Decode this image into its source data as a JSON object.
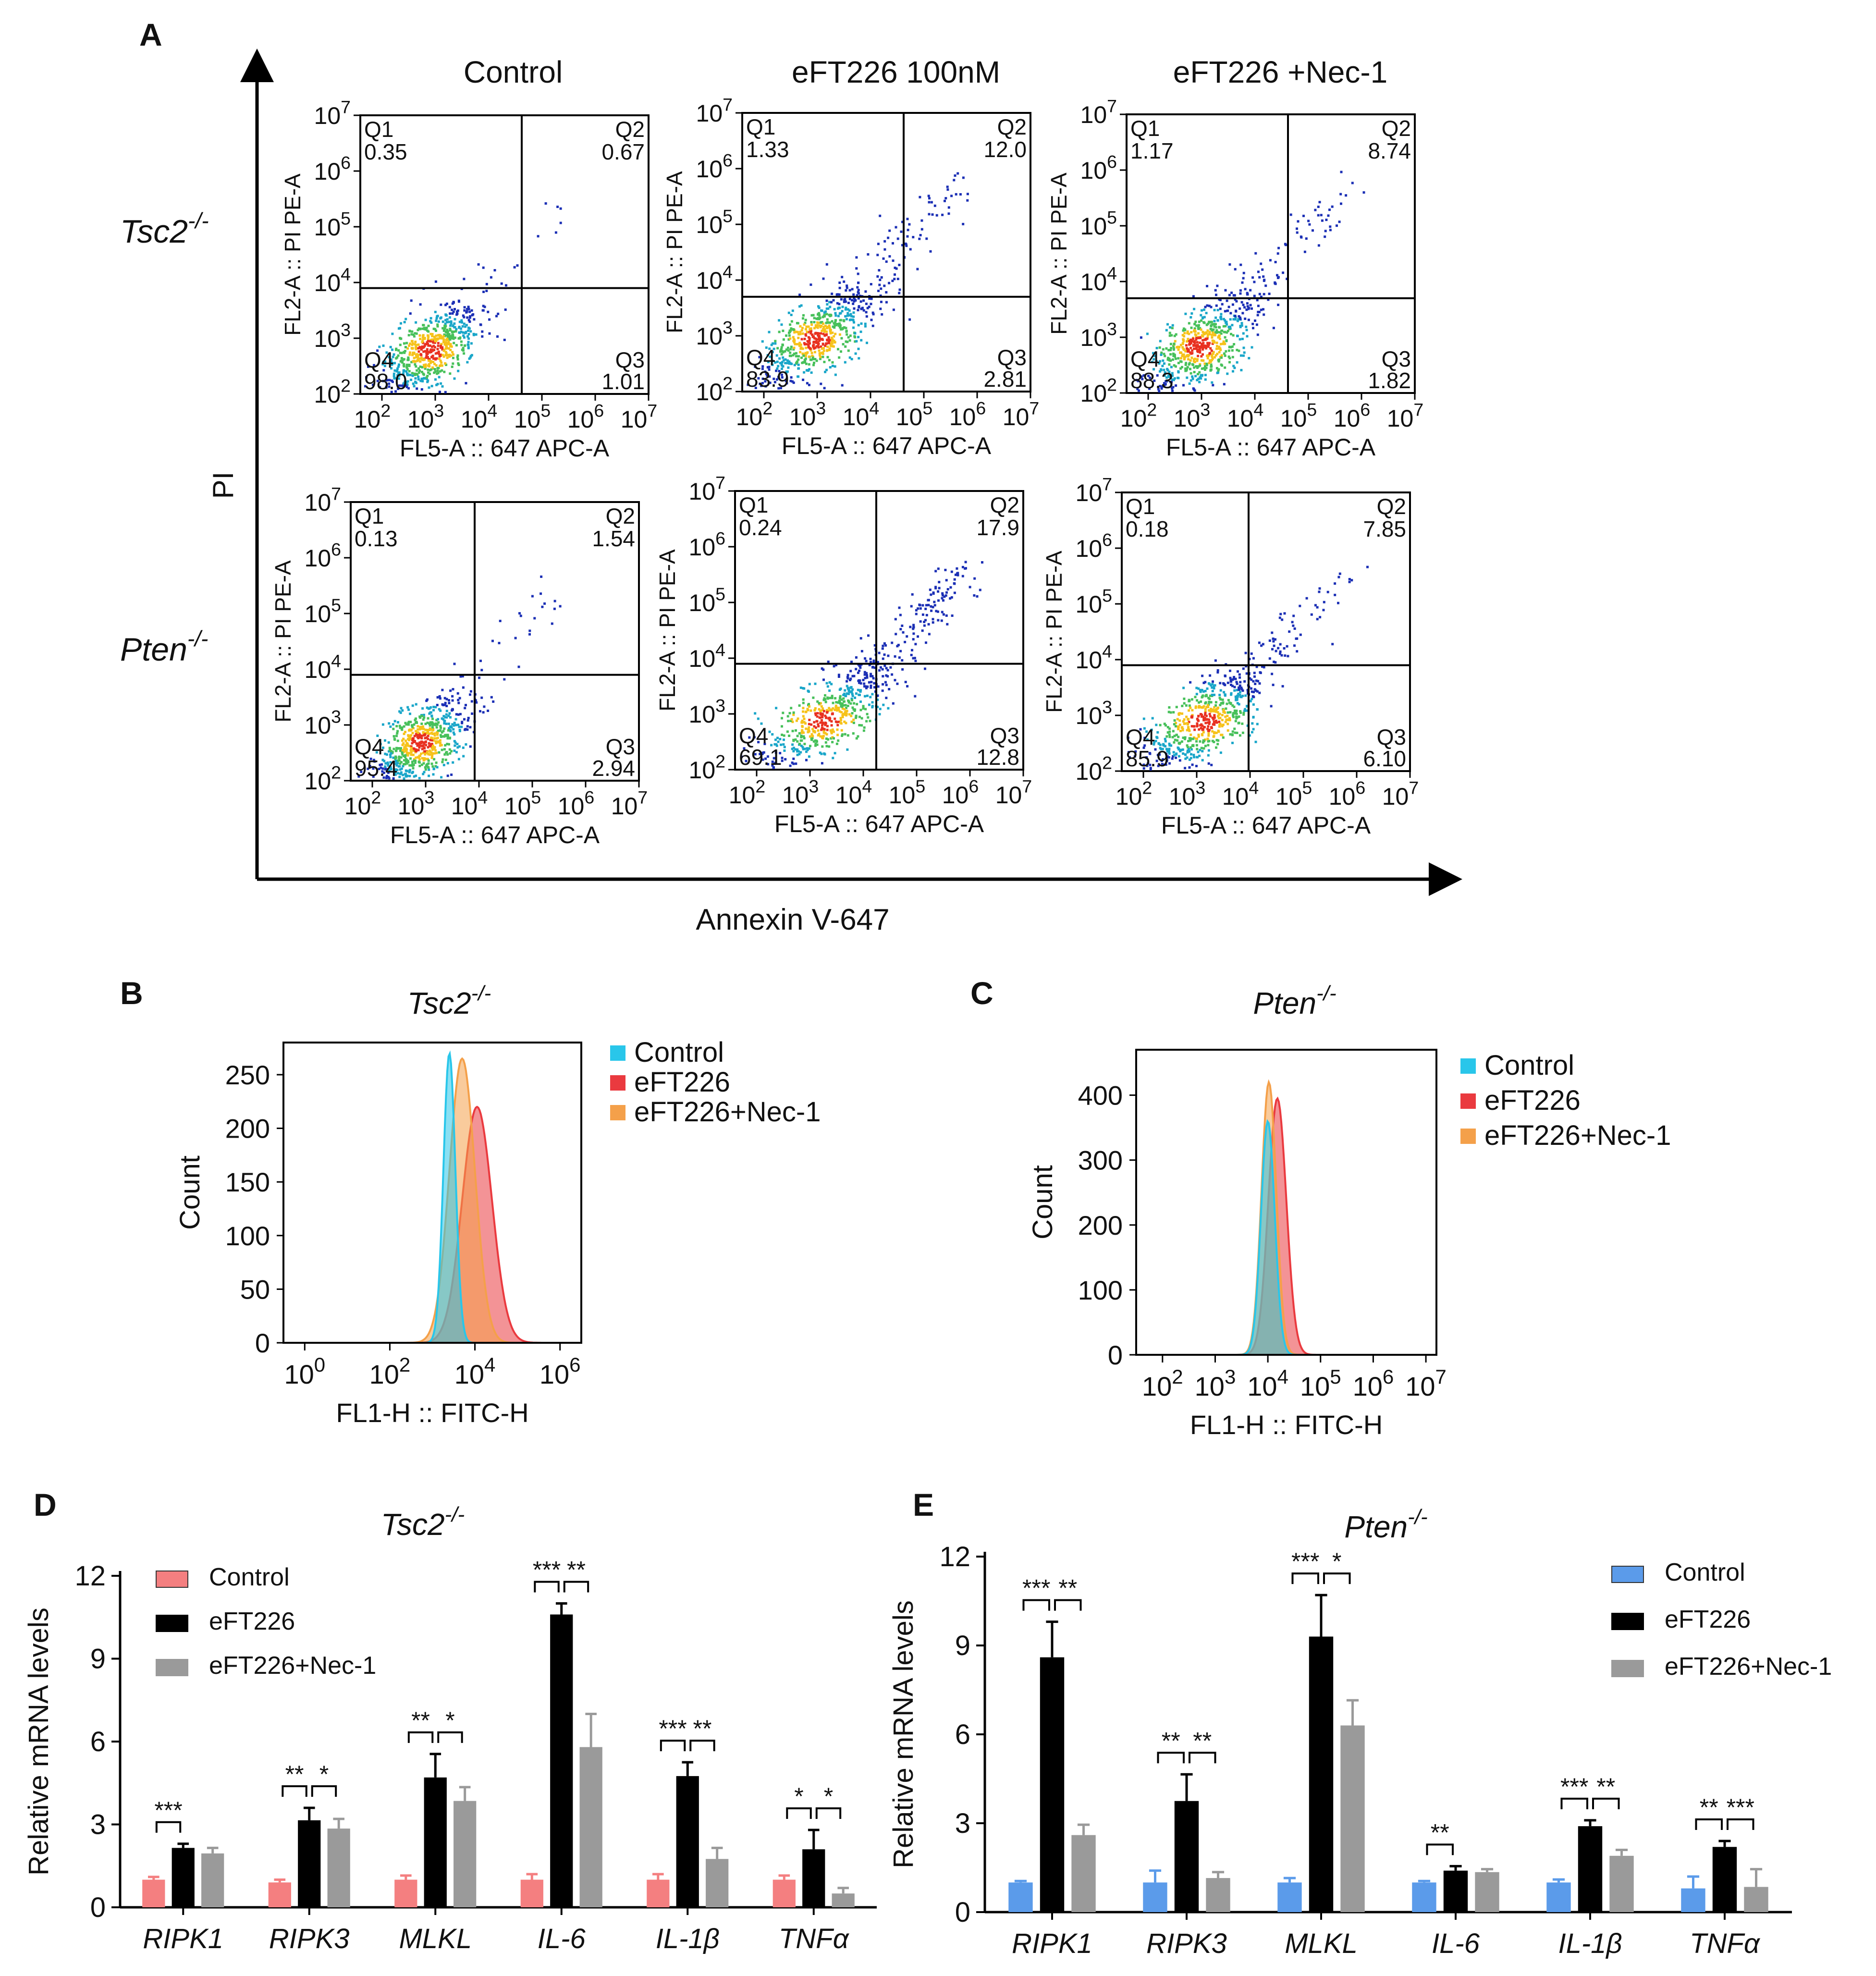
{
  "panels": {
    "A": {
      "letter": "A",
      "columns": [
        "Control",
        "eFT226 100nM",
        "eFT226 +Nec-1"
      ],
      "rows": [
        {
          "base": "Tsc2",
          "sup": "-/-"
        },
        {
          "base": "Pten",
          "sup": "-/-"
        }
      ],
      "y_axis_label": "PI",
      "x_axis_label": "Annexin V-647",
      "plot_ylabel": "FL2-A :: PI PE-A",
      "plot_xlabel": "FL5-A :: 647 APC-A",
      "tick_base": "10",
      "y_exponents": [
        "2",
        "3",
        "4",
        "5",
        "6",
        "7"
      ],
      "x_exponents": [
        "2",
        "3",
        "4",
        "5",
        "6",
        "7"
      ],
      "quadrant_names": [
        "Q1",
        "Q2",
        "Q3",
        "Q4"
      ],
      "quadrants": [
        [
          {
            "Q1": "0.35",
            "Q2": "0.67",
            "Q3": "1.01",
            "Q4": "98.0"
          },
          {
            "Q1": "1.33",
            "Q2": "12.0",
            "Q3": "2.81",
            "Q4": "83.9"
          },
          {
            "Q1": "1.17",
            "Q2": "8.74",
            "Q3": "1.82",
            "Q4": "88.3"
          }
        ],
        [
          {
            "Q1": "0.13",
            "Q2": "1.54",
            "Q3": "2.94",
            "Q4": "95.4"
          },
          {
            "Q1": "0.24",
            "Q2": "17.9",
            "Q3": "12.8",
            "Q4": "69.1"
          },
          {
            "Q1": "0.18",
            "Q2": "7.85",
            "Q3": "6.10",
            "Q4": "85.9"
          }
        ]
      ]
    },
    "B": {
      "letter": "B",
      "title": {
        "base": "Tsc2",
        "sup": "-/-"
      },
      "ylabel": "Count",
      "xlabel": "FL1-H :: FITC-H",
      "legend": [
        "Control",
        "eFT226",
        "eFT226+Nec-1"
      ]
    },
    "C": {
      "letter": "C",
      "title": {
        "base": "Pten",
        "sup": "-/-"
      },
      "ylabel": "Count",
      "xlabel": "FL1-H :: FITC-H",
      "legend": [
        "Control",
        "eFT226",
        "eFT226+Nec-1"
      ]
    },
    "D": {
      "letter": "D",
      "title": {
        "base": "Tsc2",
        "sup": "-/-"
      },
      "ylabel": "Relative  mRNA levels",
      "legend": [
        "Control",
        "eFT226",
        "eFT226+Nec-1"
      ]
    },
    "E": {
      "letter": "E",
      "title": {
        "base": "Pten",
        "sup": "-/-"
      },
      "ylabel": "Relative  mRNA levels",
      "legend": [
        "Control",
        "eFT226",
        "eFT226+Nec-1"
      ]
    }
  },
  "colors": {
    "control_hist": "#29c6ea",
    "eft_hist": "#ea3a3f",
    "nec_hist": "#f4a04a",
    "d_control": "#f47f80",
    "e_control": "#5b9bea",
    "eft_bar": "#000000",
    "nec_bar": "#9a9a9a"
  },
  "chart_data": [
    {
      "id": "B",
      "type": "area",
      "title": "Tsc2-/-",
      "xlabel": "FL1-H :: FITC-H",
      "ylabel": "Count",
      "x_scale": "log10",
      "xlim_exp": [
        -0.5,
        6.5
      ],
      "x_tick_exponents": [
        0,
        2,
        4,
        6
      ],
      "x_tick_labels": [
        "10",
        "10",
        "10",
        "10"
      ],
      "x_tick_sups": [
        "0",
        "2",
        "4",
        "6"
      ],
      "ylim": [
        0,
        280
      ],
      "y_ticks": [
        0,
        50,
        100,
        150,
        200,
        250
      ],
      "y_tick_labels": [
        "0",
        "50",
        "100",
        "150",
        "200",
        "250"
      ],
      "series": [
        {
          "name": "Control",
          "peak_exp": 3.4,
          "sd": 0.14,
          "peak": 270
        },
        {
          "name": "eFT226",
          "peak_exp": 4.05,
          "sd": 0.35,
          "peak": 220
        },
        {
          "name": "eFT226+Nec-1",
          "peak_exp": 3.7,
          "sd": 0.3,
          "peak": 265
        }
      ]
    },
    {
      "id": "C",
      "type": "area",
      "title": "Pten-/-",
      "xlabel": "FL1-H :: FITC-H",
      "ylabel": "Count",
      "x_scale": "log10",
      "xlim_exp": [
        1.5,
        7.2
      ],
      "x_tick_exponents": [
        2,
        3,
        4,
        5,
        6,
        7
      ],
      "x_tick_labels": [
        "10",
        "10",
        "10",
        "10",
        "10",
        "10"
      ],
      "x_tick_sups": [
        "2",
        "3",
        "4",
        "5",
        "6",
        "7"
      ],
      "ylim": [
        0,
        470
      ],
      "y_ticks": [
        0,
        100,
        200,
        300,
        400
      ],
      "y_tick_labels": [
        "0",
        "100",
        "200",
        "300",
        "400"
      ],
      "series": [
        {
          "name": "Control",
          "peak_exp": 4.0,
          "sd": 0.13,
          "peak": 360
        },
        {
          "name": "eFT226",
          "peak_exp": 4.18,
          "sd": 0.17,
          "peak": 395
        },
        {
          "name": "eFT226+Nec-1",
          "peak_exp": 4.02,
          "sd": 0.14,
          "peak": 420
        }
      ]
    },
    {
      "id": "D",
      "type": "bar",
      "title": "Tsc2-/-",
      "ylabel": "Relative  mRNA levels",
      "categories": [
        "RIPK1",
        "RIPK3",
        "MLKL",
        "IL-6",
        "IL-1β",
        "TNFα"
      ],
      "ylim": [
        0,
        12
      ],
      "y_ticks": [
        0,
        3,
        6,
        9,
        12
      ],
      "y_tick_labels": [
        "0",
        "3",
        "6",
        "9",
        "12"
      ],
      "series": [
        {
          "name": "Control",
          "values": [
            1.0,
            0.9,
            1.0,
            1.0,
            1.0,
            1.0
          ],
          "errors": [
            0.1,
            0.1,
            0.15,
            0.2,
            0.2,
            0.15
          ]
        },
        {
          "name": "eFT226",
          "values": [
            2.15,
            3.15,
            4.7,
            10.6,
            4.75,
            2.1
          ],
          "errors": [
            0.15,
            0.45,
            0.85,
            0.4,
            0.5,
            0.7
          ]
        },
        {
          "name": "eFT226+Nec-1",
          "values": [
            1.95,
            2.85,
            3.85,
            5.8,
            1.75,
            0.5
          ],
          "errors": [
            0.2,
            0.35,
            0.5,
            1.2,
            0.4,
            0.2
          ]
        }
      ],
      "significance": [
        {
          "labels": [
            "***"
          ],
          "pairs": [
            [
              0,
              1
            ]
          ]
        },
        {
          "labels": [
            "**",
            "*"
          ],
          "pairs": [
            [
              0,
              1
            ],
            [
              1,
              2
            ]
          ]
        },
        {
          "labels": [
            "**",
            "*"
          ],
          "pairs": [
            [
              0,
              1
            ],
            [
              1,
              2
            ]
          ]
        },
        {
          "labels": [
            "***",
            "**"
          ],
          "pairs": [
            [
              0,
              1
            ],
            [
              1,
              2
            ]
          ]
        },
        {
          "labels": [
            "***",
            "**"
          ],
          "pairs": [
            [
              0,
              1
            ],
            [
              1,
              2
            ]
          ]
        },
        {
          "labels": [
            "*",
            "*"
          ],
          "pairs": [
            [
              0,
              1
            ],
            [
              1,
              2
            ]
          ]
        }
      ]
    },
    {
      "id": "E",
      "type": "bar",
      "title": "Pten-/-",
      "ylabel": "Relative  mRNA levels",
      "categories": [
        "RIPK1",
        "RIPK3",
        "MLKL",
        "IL-6",
        "IL-1β",
        "TNFα"
      ],
      "ylim": [
        0,
        12
      ],
      "y_ticks": [
        0,
        3,
        6,
        9,
        12
      ],
      "y_tick_labels": [
        "0",
        "3",
        "6",
        "9",
        "12"
      ],
      "series": [
        {
          "name": "Control",
          "values": [
            1.0,
            1.0,
            1.0,
            1.0,
            1.0,
            0.8
          ],
          "errors": [
            0.05,
            0.4,
            0.15,
            0.05,
            0.1,
            0.4
          ]
        },
        {
          "name": "eFT226",
          "values": [
            8.6,
            3.75,
            9.3,
            1.4,
            2.9,
            2.2
          ],
          "errors": [
            1.2,
            0.9,
            1.4,
            0.15,
            0.2,
            0.2
          ]
        },
        {
          "name": "eFT226+Nec-1",
          "values": [
            2.6,
            1.15,
            6.3,
            1.35,
            1.9,
            0.85
          ],
          "errors": [
            0.35,
            0.2,
            0.85,
            0.1,
            0.2,
            0.6
          ]
        }
      ],
      "significance": [
        {
          "labels": [
            "***",
            "**"
          ],
          "pairs": [
            [
              0,
              1
            ],
            [
              1,
              2
            ]
          ]
        },
        {
          "labels": [
            "**",
            "**"
          ],
          "pairs": [
            [
              0,
              1
            ],
            [
              1,
              2
            ]
          ]
        },
        {
          "labels": [
            "***",
            "*"
          ],
          "pairs": [
            [
              0,
              1
            ],
            [
              1,
              2
            ]
          ]
        },
        {
          "labels": [
            "**"
          ],
          "pairs": [
            [
              0,
              1
            ]
          ]
        },
        {
          "labels": [
            "***",
            "**"
          ],
          "pairs": [
            [
              0,
              1
            ],
            [
              1,
              2
            ]
          ]
        },
        {
          "labels": [
            "**",
            "***"
          ],
          "pairs": [
            [
              0,
              1
            ],
            [
              1,
              2
            ]
          ]
        }
      ]
    }
  ]
}
